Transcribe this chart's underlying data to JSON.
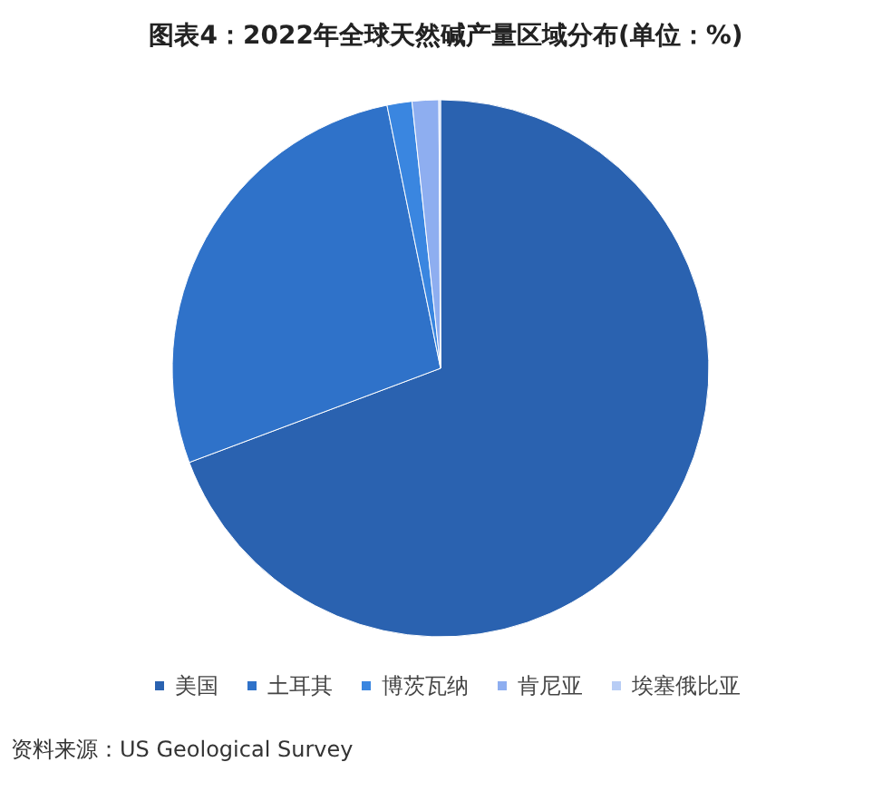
{
  "chart_data": {
    "type": "pie",
    "title": "图表4：2022年全球天然碱产量区域分布(单位：%)",
    "categories": [
      "美国",
      "土耳其",
      "博茨瓦纳",
      "肯尼亚",
      "埃塞俄比亚"
    ],
    "values": [
      69.3,
      27.5,
      1.5,
      1.6,
      0.1
    ],
    "colors": [
      "#2a62b0",
      "#2f72c9",
      "#3a86e0",
      "#8eaef0",
      "#b8cdf5"
    ],
    "legend": "bottom",
    "annotations": [
      "资料来源：US Geological Survey"
    ]
  }
}
